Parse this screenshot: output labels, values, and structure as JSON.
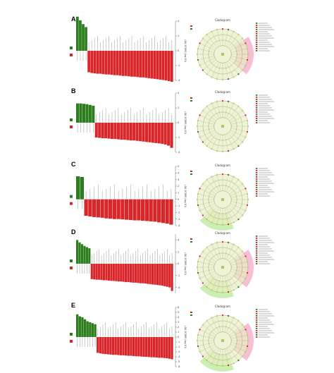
{
  "colors": {
    "green_bar": "#2e7d1e",
    "red_bar": "#d9262b",
    "ring_fill": "#e8ecc4",
    "pink_sector": "#f4a8c8",
    "light_green_sector": "#b9e89a",
    "node": "#b8d060"
  },
  "panels": [
    {
      "letter": "A",
      "axis_label": "LDA SCORE (log 10)",
      "cladogram_title": "Cladogram",
      "chart_data": {
        "type": "bar",
        "orientation": "vertical",
        "n_green_bars": 4,
        "n_red_bars": 30,
        "green_values": [
          4.6,
          4.1,
          3.6,
          3.2
        ],
        "red_values": [
          -2.9,
          -3.0,
          -3.05,
          -3.1,
          -3.1,
          -3.15,
          -3.2,
          -3.2,
          -3.25,
          -3.3,
          -3.3,
          -3.35,
          -3.4,
          -3.4,
          -3.45,
          -3.5,
          -3.5,
          -3.55,
          -3.6,
          -3.6,
          -3.65,
          -3.7,
          -3.75,
          -3.8,
          -3.85,
          -3.9,
          -3.95,
          -4.0,
          -4.1,
          -4.2
        ],
        "ylim": [
          -4,
          4
        ],
        "ticks": [
          "4",
          "2",
          "0",
          "-2",
          "-4"
        ],
        "highlight_sectors": [
          "pink"
        ]
      }
    },
    {
      "letter": "B",
      "axis_label": "LDA SCORE (log 10)",
      "cladogram_title": "Cladogram",
      "chart_data": {
        "type": "bar",
        "orientation": "vertical",
        "n_green_bars": 6,
        "n_red_bars": 25,
        "green_values": [
          2.6,
          2.6,
          2.55,
          2.5,
          2.4,
          2.3
        ],
        "red_values": [
          -2.0,
          -2.05,
          -2.1,
          -2.1,
          -2.15,
          -2.2,
          -2.2,
          -2.25,
          -2.3,
          -2.3,
          -2.35,
          -2.4,
          -2.4,
          -2.45,
          -2.5,
          -2.55,
          -2.6,
          -2.65,
          -2.7,
          -2.75,
          -2.8,
          -2.85,
          -2.95,
          -3.1,
          -3.4
        ],
        "ylim": [
          -4,
          4
        ],
        "ticks": [
          "4",
          "2",
          "0",
          "-2",
          "-4"
        ],
        "highlight_sectors": []
      }
    },
    {
      "letter": "C",
      "axis_label": "LDA SCORE (log 10)",
      "cladogram_title": "Cladogram",
      "chart_data": {
        "type": "bar",
        "orientation": "vertical",
        "n_green_bars": 2,
        "n_red_bars": 22,
        "green_values": [
          3.5,
          3.4
        ],
        "red_values": [
          -2.5,
          -2.6,
          -2.7,
          -2.75,
          -2.8,
          -2.9,
          -2.95,
          -3.0,
          -3.0,
          -3.05,
          -3.1,
          -3.15,
          -3.2,
          -3.2,
          -3.25,
          -3.3,
          -3.35,
          -3.4,
          -3.5,
          -3.6,
          -3.7,
          -3.85
        ],
        "ylim": [
          -4,
          5
        ],
        "ticks": [
          "5",
          "4",
          "3",
          "2",
          "1",
          "0",
          "-1",
          "-2",
          "-3",
          "-4"
        ],
        "highlight_sectors": [
          "lightgreen"
        ]
      }
    },
    {
      "letter": "D",
      "axis_label": "LDA SCORE (log 10)",
      "cladogram_title": "Cladogram",
      "chart_data": {
        "type": "bar",
        "orientation": "vertical",
        "n_green_bars": 6,
        "n_red_bars": 34,
        "green_values": [
          4.0,
          3.6,
          3.3,
          3.0,
          2.8,
          2.6
        ],
        "red_values": [
          -2.6,
          -2.65,
          -2.7,
          -2.7,
          -2.75,
          -2.8,
          -2.8,
          -2.85,
          -2.9,
          -2.9,
          -2.95,
          -3.0,
          -3.0,
          -3.05,
          -3.1,
          -3.1,
          -3.15,
          -3.2,
          -3.2,
          -3.25,
          -3.3,
          -3.3,
          -3.35,
          -3.4,
          -3.45,
          -3.5,
          -3.55,
          -3.6,
          -3.65,
          -3.7,
          -3.8,
          -3.9,
          -4.0,
          -4.6
        ],
        "ylim": [
          -5,
          5
        ],
        "ticks": [
          "4",
          "2",
          "0",
          "-2",
          "-4"
        ],
        "highlight_sectors": [
          "pink",
          "lightgreen"
        ]
      }
    },
    {
      "letter": "E",
      "axis_label": "LDA SCORE (log 10)",
      "cladogram_title": "Cladogram",
      "chart_data": {
        "type": "bar",
        "orientation": "vertical",
        "n_green_bars": 8,
        "n_red_bars": 30,
        "green_values": [
          4.6,
          4.2,
          4.0,
          3.6,
          3.2,
          3.0,
          2.8,
          2.6
        ],
        "red_values": [
          -3.2,
          -3.3,
          -3.4,
          -3.45,
          -3.5,
          -3.55,
          -3.6,
          -3.6,
          -3.65,
          -3.7,
          -3.7,
          -3.75,
          -3.8,
          -3.8,
          -3.85,
          -3.9,
          -3.9,
          -3.95,
          -4.0,
          -4.0,
          -4.05,
          -4.1,
          -4.1,
          -4.15,
          -4.2,
          -4.2,
          -4.25,
          -4.3,
          -4.4,
          -4.5
        ],
        "ylim": [
          -6,
          6
        ],
        "ticks": [
          "-6",
          "-5",
          "-4",
          "-3",
          "-2",
          "-1",
          "0",
          "1",
          "2",
          "3",
          "4",
          "5",
          "6"
        ],
        "highlight_sectors": [
          "pink",
          "lightgreen"
        ]
      }
    }
  ]
}
